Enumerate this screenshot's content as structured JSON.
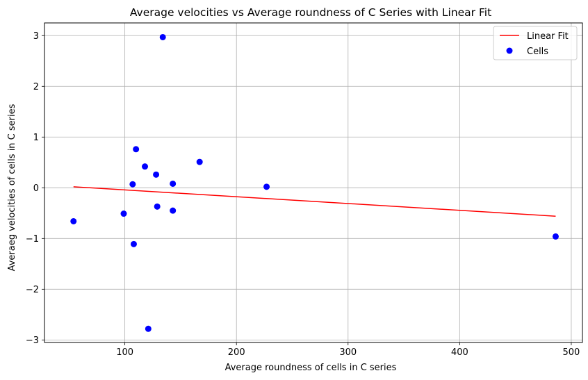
{
  "chart_data": {
    "type": "scatter",
    "title": "Average velocities vs Average roundness of C Series with Linear Fit",
    "xlabel": "Average roundness of cells in C series",
    "ylabel": "Averaeg velocities of cells in C series",
    "xlim": [
      28,
      510
    ],
    "ylim": [
      -3.05,
      3.25
    ],
    "xticks": [
      100,
      200,
      300,
      400,
      500
    ],
    "yticks": [
      -3,
      -2,
      -1,
      0,
      1,
      2,
      3
    ],
    "xtick_labels": [
      "100",
      "200",
      "300",
      "400",
      "500"
    ],
    "ytick_labels": [
      "−3",
      "−2",
      "−1",
      "0",
      "1",
      "2",
      "3"
    ],
    "grid": true,
    "legend_position": "top-right",
    "series": [
      {
        "name": "Linear Fit",
        "kind": "line",
        "color": "#ff0000",
        "x": [
          54,
          486
        ],
        "y": [
          0.02,
          -0.56
        ]
      },
      {
        "name": "Cells",
        "kind": "scatter",
        "color": "#0000ff",
        "x": [
          54,
          99,
          107,
          108,
          110,
          118,
          121,
          128,
          129,
          134,
          143,
          143,
          167,
          227,
          486
        ],
        "y": [
          -0.66,
          -0.51,
          0.07,
          -1.11,
          0.76,
          0.42,
          -2.78,
          0.26,
          -0.37,
          2.97,
          0.08,
          -0.45,
          0.51,
          0.02,
          -0.96
        ]
      }
    ]
  }
}
